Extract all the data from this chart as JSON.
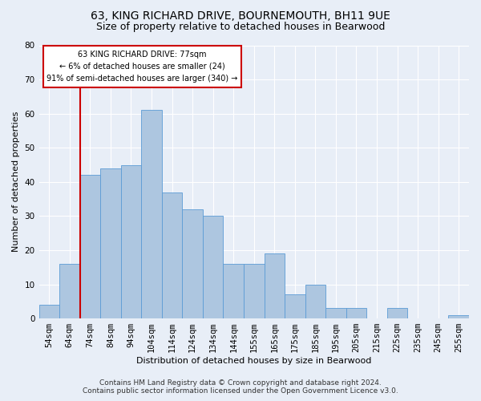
{
  "title1": "63, KING RICHARD DRIVE, BOURNEMOUTH, BH11 9UE",
  "title2": "Size of property relative to detached houses in Bearwood",
  "xlabel": "Distribution of detached houses by size in Bearwood",
  "ylabel": "Number of detached properties",
  "footnote": "Contains HM Land Registry data © Crown copyright and database right 2024.\nContains public sector information licensed under the Open Government Licence v3.0.",
  "bar_labels": [
    "54sqm",
    "64sqm",
    "74sqm",
    "84sqm",
    "94sqm",
    "104sqm",
    "114sqm",
    "124sqm",
    "134sqm",
    "144sqm",
    "155sqm",
    "165sqm",
    "175sqm",
    "185sqm",
    "195sqm",
    "205sqm",
    "215sqm",
    "225sqm",
    "235sqm",
    "245sqm",
    "255sqm"
  ],
  "bar_values": [
    4,
    16,
    42,
    44,
    45,
    61,
    37,
    32,
    30,
    16,
    16,
    19,
    7,
    10,
    3,
    3,
    0,
    3,
    0,
    0,
    1
  ],
  "bar_color": "#adc6e0",
  "bar_edge_color": "#5b9bd5",
  "vline_color": "#cc0000",
  "vline_x": 1.5,
  "annotation_box_text": "63 KING RICHARD DRIVE: 77sqm\n← 6% of detached houses are smaller (24)\n91% of semi-detached houses are larger (340) →",
  "box_edge_color": "#cc0000",
  "ylim": [
    0,
    80
  ],
  "yticks": [
    0,
    10,
    20,
    30,
    40,
    50,
    60,
    70,
    80
  ],
  "bg_color": "#e8eef7",
  "plot_bg_color": "#e8eef7",
  "grid_color": "#ffffff",
  "title1_fontsize": 10,
  "title2_fontsize": 9,
  "xlabel_fontsize": 8,
  "ylabel_fontsize": 8,
  "tick_fontsize": 7.5,
  "footnote_fontsize": 6.5
}
